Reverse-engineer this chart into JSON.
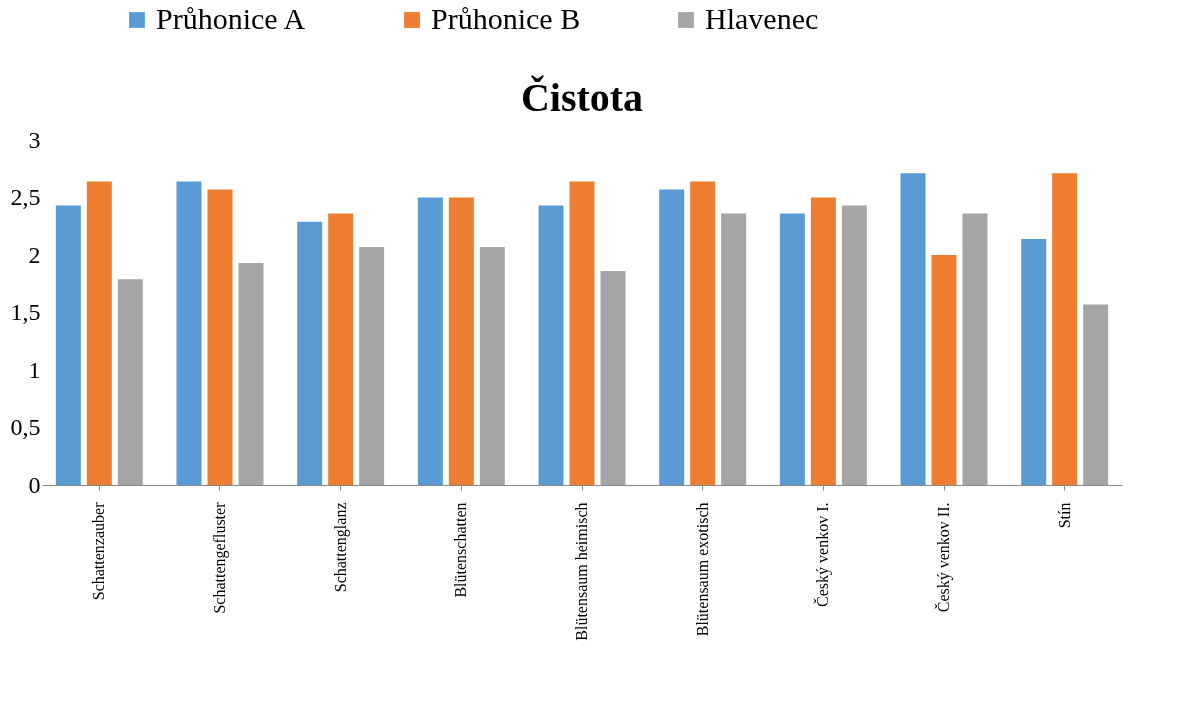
{
  "chart_data": {
    "type": "bar",
    "title": "Čistota",
    "categories": [
      "Schattenzauber",
      "Schattengefluster",
      "Schattenglanz",
      "Blütenschatten",
      "Blütensaum heimisch",
      "Blütensaum exotisch",
      "Český venkov I.",
      "Český venkov II.",
      "Stín"
    ],
    "series": [
      {
        "name": "Průhonice A",
        "color": "#5b9bd5",
        "values": [
          2.43,
          2.64,
          2.29,
          2.5,
          2.43,
          2.57,
          2.36,
          2.71,
          2.14
        ]
      },
      {
        "name": "Průhonice B",
        "color": "#ed7d31",
        "values": [
          2.64,
          2.57,
          2.36,
          2.5,
          2.64,
          2.64,
          2.5,
          2.0,
          2.71
        ]
      },
      {
        "name": "Hlavenec",
        "color": "#a5a5a5",
        "values": [
          1.79,
          1.93,
          2.07,
          2.07,
          1.86,
          2.36,
          2.43,
          2.36,
          1.57
        ]
      }
    ],
    "ylim": [
      0,
      3
    ],
    "yticks": [
      0,
      {
        "value": 0.5,
        "label": "0,5"
      },
      1,
      {
        "value": 1.5,
        "label": "1,5"
      },
      2,
      {
        "value": 2.5,
        "label": "2,5"
      },
      3
    ],
    "grid": false,
    "legend": "top"
  }
}
